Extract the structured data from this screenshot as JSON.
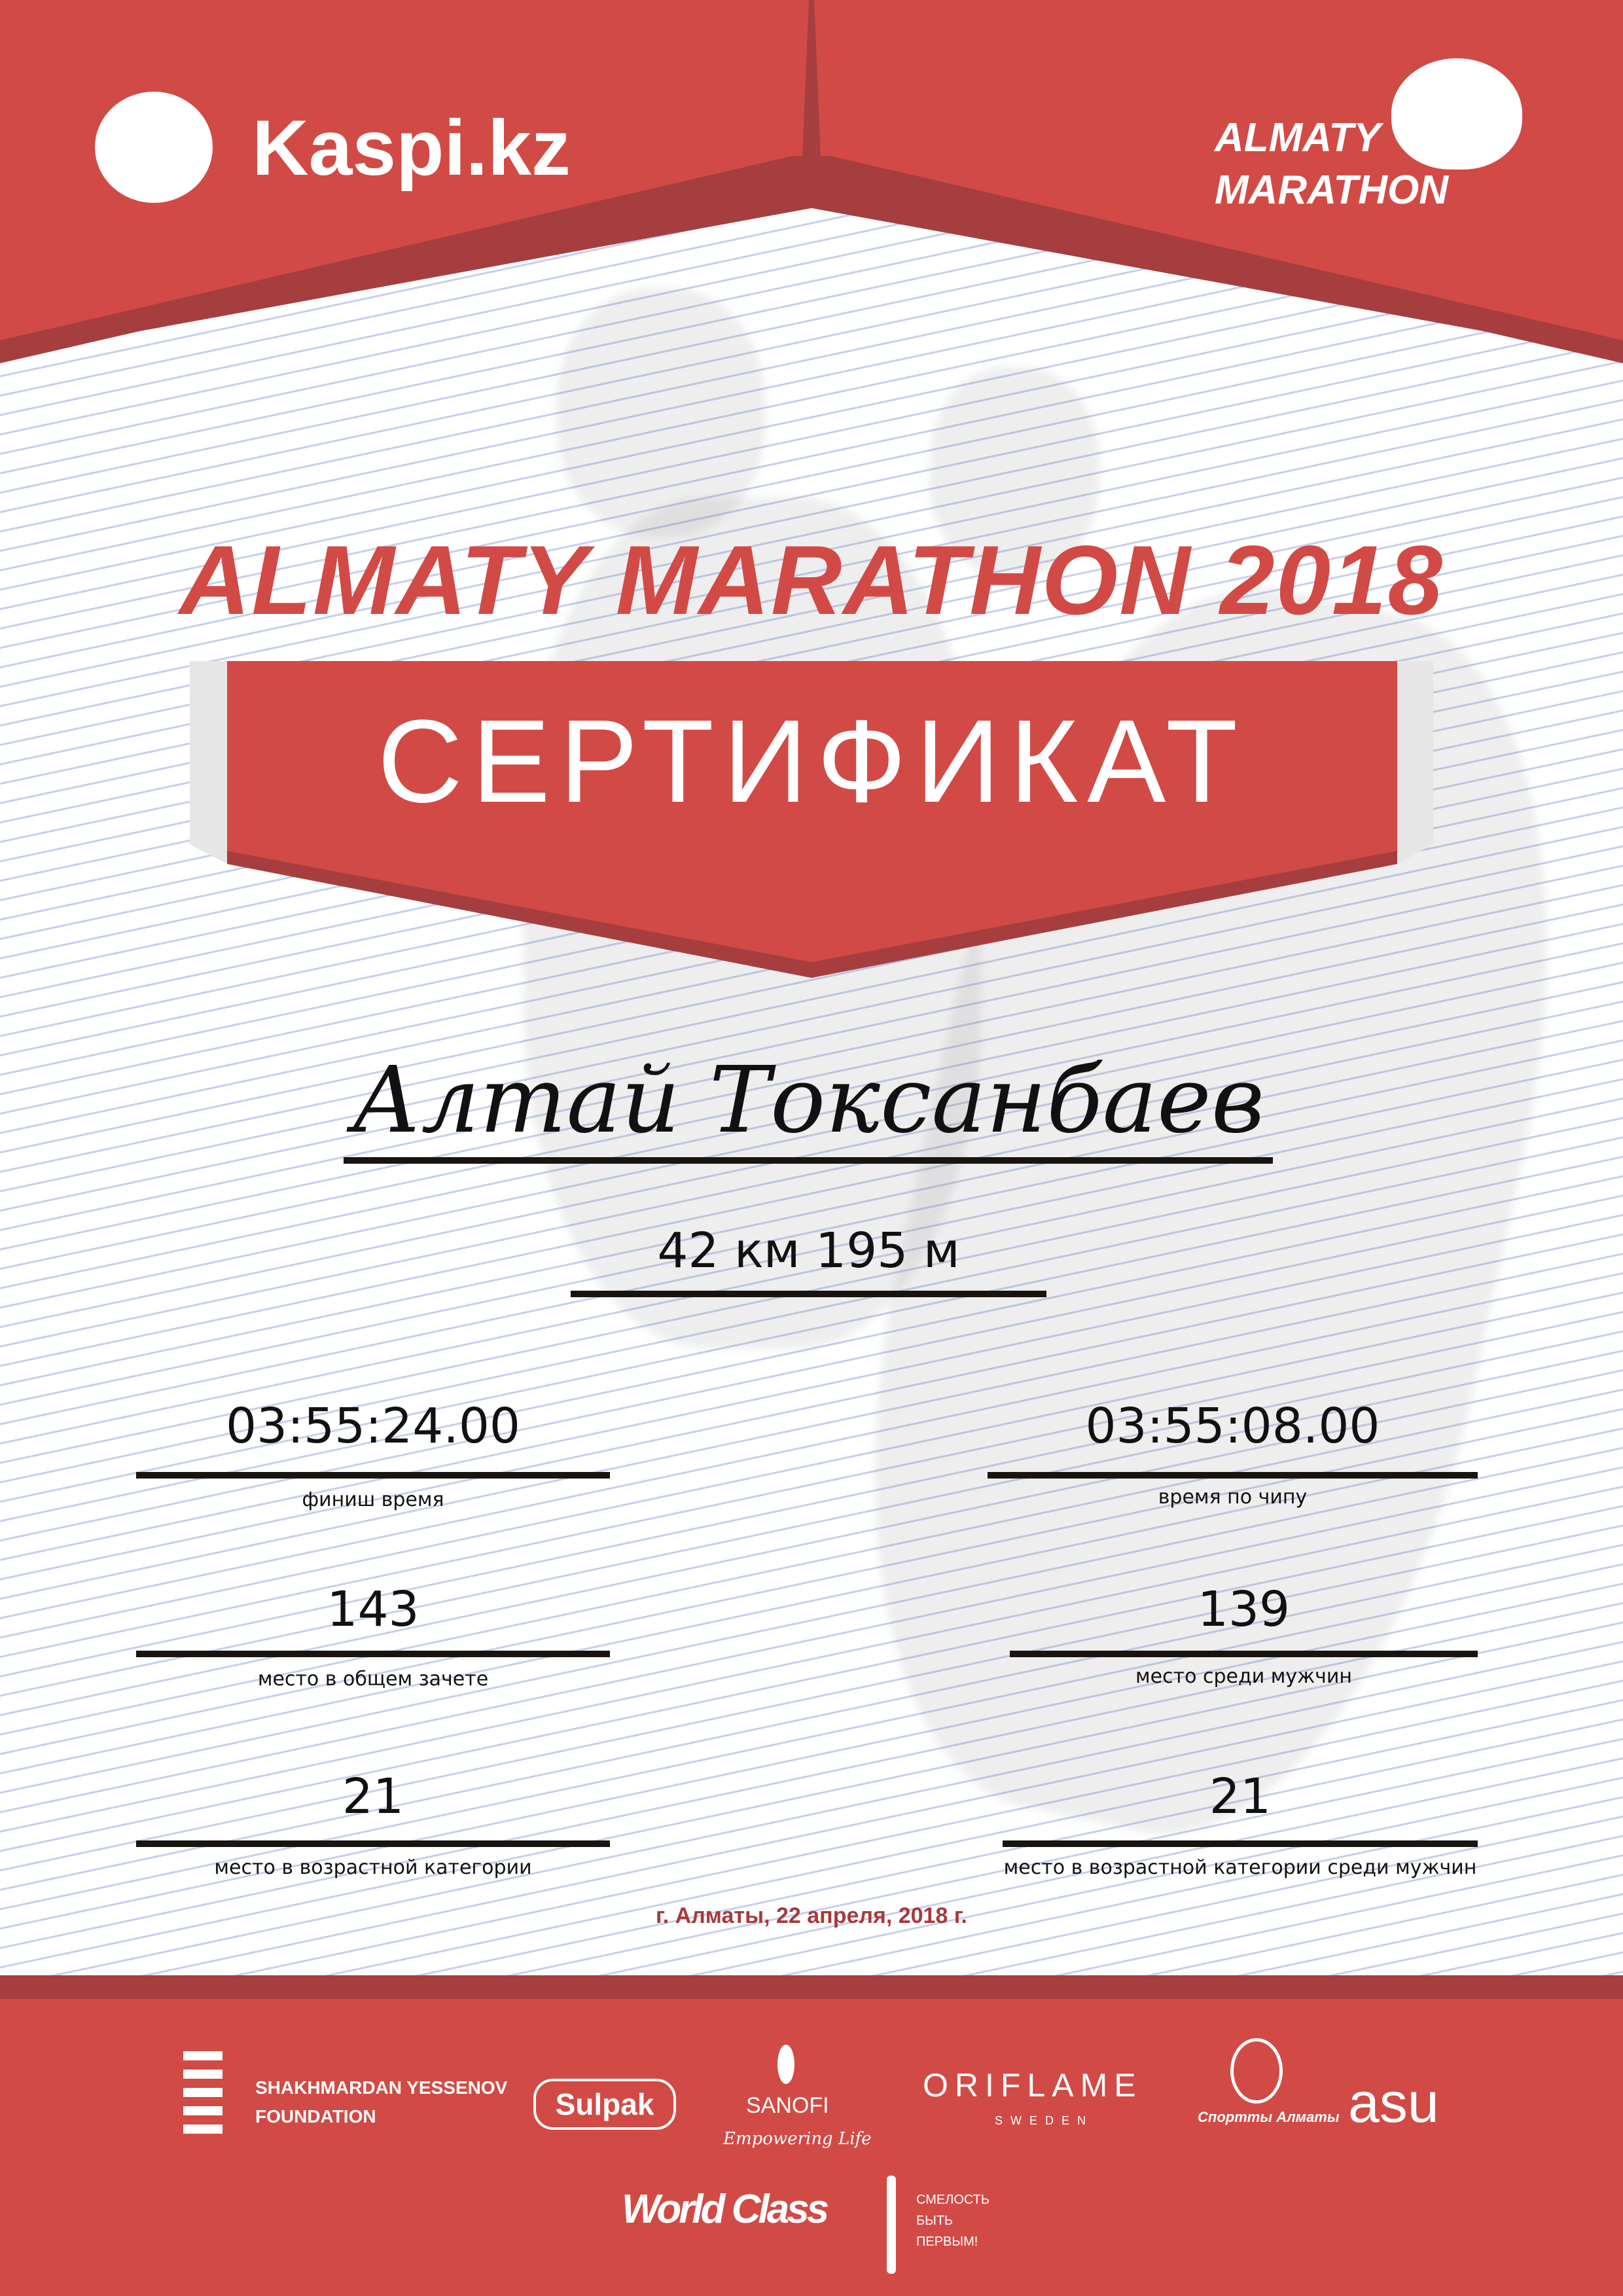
{
  "header": {
    "sponsor_logo": "Kaspi.kz",
    "event_logo_line1": "ALMATY",
    "event_logo_line2": "MARATHON",
    "colors": {
      "red": "#d24a45",
      "dark_red": "#a63e3f"
    }
  },
  "certificate": {
    "event_title": "ALMATY MARATHON 2018",
    "heading": "СЕРТИФИКАТ",
    "participant_name": "Алтай Токсанбаев",
    "distance": "42 км 195 м",
    "results": [
      {
        "value": "03:55:24.00",
        "label": "финиш время"
      },
      {
        "value": "03:55:08.00",
        "label": "время по чипу"
      },
      {
        "value": "143",
        "label": "место в общем зачете"
      },
      {
        "value": "139",
        "label": "место среди мужчин"
      },
      {
        "value": "21",
        "label": "место в возрастной категории"
      },
      {
        "value": "21",
        "label": "место в возрастной категории среди мужчин"
      }
    ],
    "place_date": "г. Алматы, 22 апреля, 2018 г."
  },
  "sponsors": {
    "yessenov_line1": "SHAKHMARDAN YESSENOV",
    "yessenov_line2": "FOUNDATION",
    "sulpak": "Sulpak",
    "sanofi": "SANOFI",
    "sanofi_tagline": "Empowering Life",
    "oriflame": "ORIFLAME",
    "oriflame_sub": "SWEDEN",
    "sport_almaty": "Спортты Алматы",
    "asu": "asu",
    "worldclass": "World Class",
    "fund_line1": "СМЕЛОСТЬ",
    "fund_line2": "БЫТЬ",
    "fund_line3": "ПЕРВЫМ!"
  }
}
